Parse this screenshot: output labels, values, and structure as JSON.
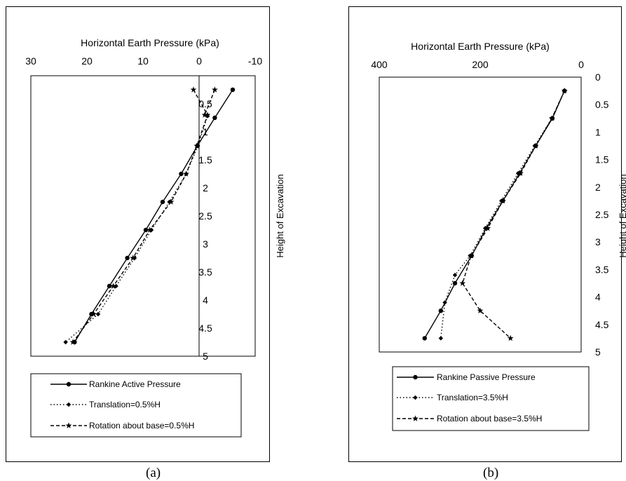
{
  "captions": [
    "(a)",
    "(b)"
  ],
  "chart_data": [
    {
      "type": "line",
      "panel": "a",
      "xlabel": "Horizontal Earth Pressure (kPa)",
      "ylabel": "Height of Excavation",
      "xlim": [
        30,
        -10
      ],
      "ylim": [
        0,
        5
      ],
      "x_ticks": [
        "30",
        "20",
        "10",
        "0",
        "-10"
      ],
      "y_ticks": [
        "0.5",
        "1",
        "1.5",
        "2",
        "2.5",
        "3",
        "3.5",
        "4",
        "4.5",
        "5"
      ],
      "y_tick_values": [
        0.5,
        1,
        1.5,
        2,
        2.5,
        3,
        3.5,
        4,
        4.5,
        5
      ],
      "x_inverted": true,
      "y_inverted": true,
      "zero_line": true,
      "legend_position": "bottom",
      "series": [
        {
          "name": "Rankine Active Pressure",
          "marker": "circle",
          "dash": "solid",
          "points": [
            [
              -6.0,
              0.25
            ],
            [
              -2.8,
              0.75
            ],
            [
              0.3,
              1.25
            ],
            [
              3.2,
              1.75
            ],
            [
              6.5,
              2.25
            ],
            [
              9.5,
              2.75
            ],
            [
              12.8,
              3.25
            ],
            [
              16.0,
              3.75
            ],
            [
              19.2,
              4.25
            ],
            [
              22.2,
              4.75
            ]
          ]
        },
        {
          "name": "Translation=0.5%H",
          "marker": "diamond",
          "dash": "dashdot",
          "points": [
            [
              -1.5,
              0.72
            ],
            [
              0.2,
              1.25
            ],
            [
              2.3,
              1.75
            ],
            [
              5.3,
              2.25
            ],
            [
              8.5,
              2.75
            ],
            [
              11.5,
              3.25
            ],
            [
              14.8,
              3.75
            ],
            [
              18.0,
              4.25
            ],
            [
              23.8,
              4.75
            ]
          ]
        },
        {
          "name": "Rotation about base=0.5%H",
          "marker": "star",
          "dash": "dashed",
          "points": [
            [
              1.0,
              0.25
            ],
            [
              -1.5,
              0.7
            ],
            [
              0.4,
              1.25
            ],
            [
              2.3,
              1.75
            ],
            [
              5.0,
              2.25
            ],
            [
              8.8,
              2.75
            ],
            [
              11.8,
              3.25
            ],
            [
              15.3,
              3.75
            ],
            [
              18.8,
              4.25
            ],
            [
              22.5,
              4.75
            ]
          ]
        },
        {
          "name": "",
          "marker": "star",
          "dash": "dashed",
          "points": [
            [
              -2.8,
              0.25
            ],
            [
              -1.0,
              0.7
            ]
          ]
        }
      ]
    },
    {
      "type": "line",
      "panel": "b",
      "xlabel": "Horizontal Earth Pressure (kPa)",
      "ylabel": "Height of Excavation",
      "xlim": [
        400,
        0
      ],
      "ylim": [
        0,
        5
      ],
      "x_ticks": [
        "400",
        "200",
        "0"
      ],
      "y_ticks": [
        "0",
        "0.5",
        "1",
        "1.5",
        "2",
        "2.5",
        "3",
        "3.5",
        "4",
        "4.5",
        "5"
      ],
      "y_tick_values": [
        0,
        0.5,
        1,
        1.5,
        2,
        2.5,
        3,
        3.5,
        4,
        4.5,
        5
      ],
      "x_inverted": true,
      "y_inverted": true,
      "zero_line": false,
      "legend_position": "bottom",
      "series": [
        {
          "name": "Rankine Passive Pressure",
          "marker": "circle",
          "dash": "solid",
          "points": [
            [
              33,
              0.25
            ],
            [
              57,
              0.75
            ],
            [
              90,
              1.25
            ],
            [
              122,
              1.75
            ],
            [
              155,
              2.25
            ],
            [
              188,
              2.75
            ],
            [
              217,
              3.25
            ],
            [
              250,
              3.75
            ],
            [
              278,
              4.25
            ],
            [
              310,
              4.75
            ]
          ]
        },
        {
          "name": "Translation=3.5%H",
          "marker": "diamond",
          "dash": "dashdot",
          "points": [
            [
              33,
              0.25
            ],
            [
              58,
              0.75
            ],
            [
              92,
              1.25
            ],
            [
              125,
              1.75
            ],
            [
              158,
              2.25
            ],
            [
              190,
              2.75
            ],
            [
              220,
              3.25
            ],
            [
              250,
              3.6
            ],
            [
              270,
              4.1
            ],
            [
              278,
              4.75
            ]
          ]
        },
        {
          "name": "Rotation about base=3.5%H",
          "marker": "star",
          "dash": "dashed",
          "points": [
            [
              33,
              0.25
            ],
            [
              58,
              0.75
            ],
            [
              90,
              1.25
            ],
            [
              120,
              1.75
            ],
            [
              155,
              2.25
            ],
            [
              185,
              2.75
            ],
            [
              218,
              3.25
            ],
            [
              235,
              3.75
            ],
            [
              200,
              4.25
            ],
            [
              140,
              4.75
            ]
          ]
        }
      ]
    }
  ]
}
